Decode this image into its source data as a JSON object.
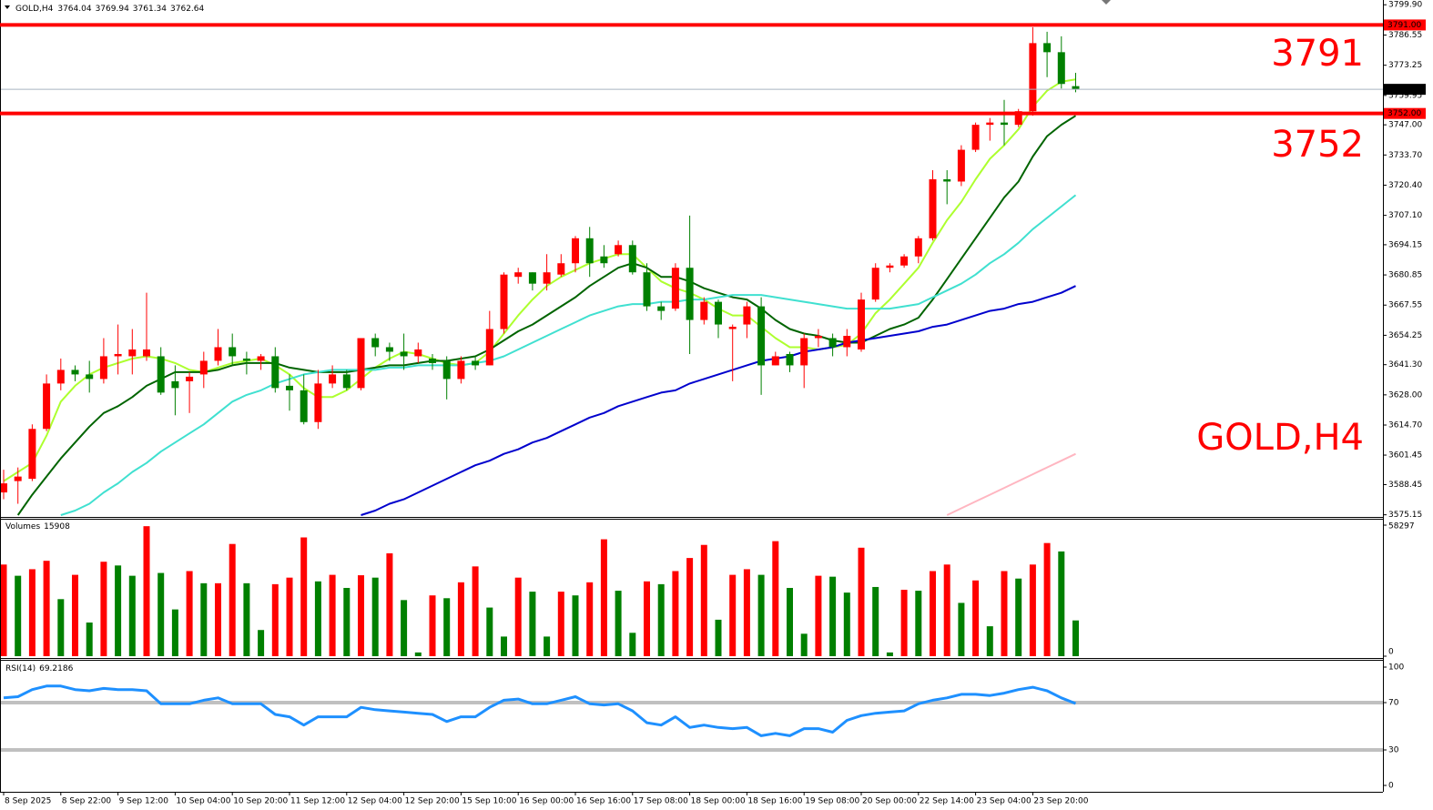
{
  "chart_data": [
    {
      "type": "candlestick",
      "symbol": "GOLD,H4",
      "categories": [
        "8 Sep 2025",
        null,
        null,
        null,
        "8 Sep 22:00",
        null,
        null,
        null,
        "9 Sep 12:00",
        null,
        null,
        null,
        "10 Sep 04:00",
        null,
        null,
        null,
        "10 Sep 20:00",
        null,
        null,
        null,
        "11 Sep 12:00",
        null,
        null,
        null,
        "12 Sep 04:00",
        null,
        null,
        null,
        "12 Sep 20:00",
        null,
        null,
        null,
        "15 Sep 10:00",
        null,
        null,
        null,
        "16 Sep 00:00",
        null,
        null,
        null,
        "16 Sep 16:00",
        null,
        null,
        null,
        "17 Sep 08:00",
        null,
        null,
        null,
        "18 Sep 00:00",
        null,
        null,
        null,
        "18 Sep 16:00",
        null,
        null,
        null,
        "19 Sep 08:00",
        null,
        null,
        null,
        "20 Sep 00:00",
        null,
        null,
        null,
        "22 Sep 14:00",
        null,
        null,
        null,
        "23 Sep 04:00",
        null,
        null,
        null,
        "23 Sep 20:00",
        null,
        null,
        null
      ],
      "open": [
        3585,
        3590,
        3591,
        3613,
        3633,
        3639,
        3637,
        3635,
        3645,
        3645,
        3645,
        3645,
        3634,
        3634,
        3637,
        3643,
        3649,
        3644,
        3643,
        3645,
        3632,
        3630,
        3616,
        3633,
        3637,
        3631,
        3653,
        3649,
        3647,
        3645,
        3644,
        3643,
        3635,
        3643,
        3641,
        3657,
        3680,
        3682,
        3677,
        3681,
        3686,
        3697,
        3689,
        3690,
        3694,
        3682,
        3667,
        3666,
        3684,
        3661,
        3669,
        3657,
        3659,
        3667,
        3641,
        3646,
        3641,
        3653,
        3653,
        3649,
        3648,
        3670,
        3684,
        3685,
        3689,
        3697,
        3723,
        3722,
        3736,
        3747,
        3748,
        3747,
        3753,
        3783,
        3779,
        3764.04
      ],
      "high": [
        3595,
        3596,
        3615,
        3637,
        3644,
        3641,
        3643,
        3653,
        3659,
        3657,
        3673,
        3649,
        3641,
        3638,
        3647,
        3657,
        3655,
        3647,
        3646,
        3649,
        3637,
        3637,
        3639,
        3641,
        3639,
        3653,
        3655,
        3651,
        3655,
        3651,
        3646,
        3645,
        3645,
        3645,
        3665,
        3682,
        3684,
        3682,
        3690,
        3690,
        3698,
        3702,
        3694,
        3696,
        3696,
        3686,
        3669,
        3686,
        3707,
        3671,
        3670,
        3659,
        3669,
        3671,
        3647,
        3647,
        3655,
        3657,
        3655,
        3657,
        3673,
        3686,
        3686,
        3690,
        3698,
        3727,
        3727,
        3738,
        3748,
        3750,
        3758,
        3754,
        3790,
        3788,
        3786,
        3769.94
      ],
      "low": [
        3582,
        3580,
        3590,
        3612,
        3630,
        3634,
        3629,
        3633,
        3637,
        3637,
        3643,
        3628,
        3619,
        3620,
        3631,
        3641,
        3641,
        3637,
        3639,
        3629,
        3621,
        3615,
        3613,
        3631,
        3630,
        3630,
        3645,
        3643,
        3639,
        3642,
        3639,
        3626,
        3633,
        3639,
        3641,
        3655,
        3677,
        3674,
        3674,
        3680,
        3682,
        3680,
        3684,
        3689,
        3681,
        3665,
        3661,
        3665,
        3646,
        3659,
        3653,
        3634,
        3653,
        3628,
        3641,
        3638,
        3631,
        3649,
        3645,
        3645,
        3647,
        3669,
        3682,
        3684,
        3686,
        3696,
        3712,
        3720,
        3735,
        3740,
        3738,
        3746,
        3751,
        3768,
        3763,
        3761.34
      ],
      "close": [
        3589,
        3592,
        3613,
        3633,
        3639,
        3637,
        3635,
        3645,
        3646,
        3648,
        3648,
        3629,
        3631,
        3636,
        3643,
        3649,
        3645,
        3643,
        3645,
        3631,
        3630,
        3616,
        3633,
        3637,
        3631,
        3653,
        3649,
        3647,
        3645,
        3648,
        3642,
        3635,
        3643,
        3641,
        3657,
        3681,
        3682,
        3677,
        3682,
        3686,
        3697,
        3686,
        3686,
        3694,
        3682,
        3667,
        3665,
        3684,
        3661,
        3669,
        3659,
        3658,
        3667,
        3641,
        3645,
        3641,
        3653,
        3654,
        3649,
        3654,
        3670,
        3684,
        3685,
        3689,
        3697,
        3723,
        3722,
        3736,
        3747,
        3748,
        3747,
        3753,
        3783,
        3779,
        3765,
        3762.64
      ],
      "up_color": "#ff0000",
      "down_color": "#008000",
      "ylim": [
        3574.2,
        3802
      ],
      "yticks": [
        {
          "value": 3799.9,
          "label": "3799.90"
        },
        3786.55,
        3773.25,
        3759.95,
        {
          "value": 3747,
          "label": "3747.00"
        },
        {
          "value": 3733.7,
          "label": "3733.70"
        },
        {
          "value": 3720.4,
          "label": "3720.40"
        },
        {
          "value": 3707.1,
          "label": "3707.10"
        },
        3694.15,
        3680.85,
        3667.55,
        3654.25,
        {
          "value": 3641.3,
          "label": "3641.30"
        },
        {
          "value": 3628,
          "label": "3628.00"
        },
        {
          "value": 3614.7,
          "label": "3614.70"
        },
        3601.45,
        3588.45,
        3575.15
      ],
      "levels": [
        {
          "value": 3791,
          "label": "3791.00"
        },
        {
          "value": 3752,
          "label": "3752.00"
        }
      ],
      "level_color": "#ff0000",
      "moving_averages": [
        {
          "color": "#adff2f",
          "values": [
            3590,
            3594,
            3598,
            3610,
            3625,
            3632,
            3637,
            3640,
            3642,
            3644,
            3645,
            3644,
            3642,
            3639,
            3638,
            3640,
            3642,
            3643,
            3644,
            3641,
            3637,
            3631,
            3627,
            3627,
            3630,
            3635,
            3640,
            3644,
            3647,
            3646,
            3644,
            3642,
            3641,
            3642,
            3647,
            3655,
            3663,
            3670,
            3676,
            3680,
            3683,
            3686,
            3688,
            3690,
            3690,
            3684,
            3678,
            3675,
            3673,
            3670,
            3666,
            3663,
            3663,
            3658,
            3653,
            3649,
            3649,
            3648,
            3649,
            3650,
            3655,
            3664,
            3670,
            3677,
            3684,
            3695,
            3705,
            3713,
            3723,
            3732,
            3738,
            3745,
            3755,
            3762,
            3766,
            3767
          ]
        },
        {
          "color": "#006400",
          "values": [
            null,
            3575,
            3584,
            3592,
            3600,
            3607,
            3614,
            3620,
            3623,
            3627,
            3632,
            3635,
            3638,
            3638,
            3638,
            3639,
            3641,
            3642,
            3642,
            3642,
            3640,
            3639,
            3638,
            3638,
            3638,
            3639,
            3640,
            3641,
            3641,
            3642,
            3643,
            3643,
            3644,
            3645,
            3648,
            3652,
            3656,
            3659,
            3663,
            3667,
            3671,
            3676,
            3680,
            3684,
            3686,
            3684,
            3680,
            3680,
            3678,
            3675,
            3673,
            3671,
            3670,
            3666,
            3661,
            3657,
            3655,
            3654,
            3652,
            3651,
            3651,
            3654,
            3657,
            3659,
            3662,
            3670,
            3679,
            3688,
            3697,
            3706,
            3715,
            3722,
            3733,
            3742,
            3747,
            3751
          ]
        },
        {
          "color": "#40e0d0",
          "values": [
            null,
            null,
            null,
            null,
            3575,
            3577,
            3580,
            3585,
            3589,
            3594,
            3598,
            3603,
            3607,
            3611,
            3615,
            3620,
            3625,
            3628,
            3630,
            3633,
            3635,
            3637,
            3638,
            3639,
            3639,
            3639,
            3639,
            3640,
            3640,
            3641,
            3641,
            3641,
            3641,
            3642,
            3643,
            3645,
            3648,
            3651,
            3654,
            3657,
            3660,
            3663,
            3665,
            3667,
            3668,
            3668,
            3669,
            3669,
            3670,
            3670,
            3671,
            3672,
            3672,
            3672,
            3671,
            3670,
            3669,
            3668,
            3667,
            3666,
            3666,
            3666,
            3666,
            3667,
            3668,
            3671,
            3674,
            3677,
            3681,
            3686,
            3690,
            3695,
            3701,
            3706,
            3711,
            3716
          ]
        },
        {
          "color": "#0000cd",
          "values": [
            null,
            null,
            null,
            null,
            null,
            null,
            null,
            null,
            null,
            null,
            null,
            null,
            null,
            null,
            null,
            null,
            null,
            null,
            null,
            null,
            null,
            null,
            null,
            null,
            null,
            3575,
            3577,
            3580,
            3582,
            3585,
            3588,
            3591,
            3594,
            3597,
            3599,
            3602,
            3604,
            3607,
            3609,
            3612,
            3615,
            3618,
            3620,
            3623,
            3625,
            3627,
            3629,
            3630,
            3633,
            3635,
            3637,
            3639,
            3641,
            3643,
            3644,
            3645,
            3647,
            3648,
            3649,
            3651,
            3652,
            3653,
            3654,
            3655,
            3656,
            3658,
            3659,
            3661,
            3663,
            3665,
            3666,
            3668,
            3669,
            3671,
            3673,
            3676
          ]
        },
        {
          "color": "#ffb6c1",
          "values": [
            null,
            null,
            null,
            null,
            null,
            null,
            null,
            null,
            null,
            null,
            null,
            null,
            null,
            null,
            null,
            null,
            null,
            null,
            null,
            null,
            null,
            null,
            null,
            null,
            null,
            null,
            null,
            null,
            null,
            null,
            null,
            null,
            null,
            null,
            null,
            null,
            null,
            null,
            null,
            null,
            null,
            null,
            null,
            null,
            null,
            null,
            null,
            null,
            null,
            null,
            null,
            null,
            null,
            null,
            null,
            null,
            null,
            null,
            null,
            null,
            null,
            null,
            null,
            null,
            null,
            null,
            3575,
            3578,
            3581,
            3584,
            3587,
            3590,
            3593,
            3596,
            3599,
            3602
          ]
        }
      ]
    },
    {
      "type": "volume",
      "title": "Volumes",
      "values": [
        40770,
        35776,
        38688,
        42432,
        25376,
        36192,
        14976,
        42016,
        40352,
        35776,
        57824,
        37024,
        20800,
        37856,
        32448,
        32448,
        49920,
        32448,
        11648,
        32032,
        34944,
        52832,
        33280,
        36192,
        30368,
        36000,
        34944,
        45760,
        24960,
        1664,
        27040,
        25792,
        32864,
        39936,
        21632,
        8736,
        34944,
        28704,
        8736,
        28704,
        27040,
        32864,
        52000,
        29120,
        10400,
        33280,
        32032,
        37856,
        43680,
        49504,
        16224,
        36192,
        38688,
        36192,
        51168,
        30368,
        9984,
        35776,
        35360,
        28288,
        48256,
        30784,
        1664,
        29536,
        29120,
        37856,
        40768,
        23712,
        33696,
        13312,
        37856,
        34528,
        40768,
        50336,
        46592,
        15908
      ],
      "up_color": "#ff0000",
      "down_color": "#008000",
      "ylim": [
        0,
        58297
      ],
      "yticks": [
        58297,
        0
      ]
    },
    {
      "type": "rsi",
      "title": "RSI(14)",
      "values": [
        74,
        75,
        81,
        84,
        84,
        81,
        80,
        82,
        81,
        81,
        80,
        69,
        69,
        69,
        72,
        74,
        69,
        69,
        69,
        60,
        58,
        51,
        58,
        58,
        58,
        66,
        64,
        63,
        62,
        61,
        60,
        54,
        58,
        58,
        66,
        72,
        73,
        69,
        69,
        72,
        75,
        69,
        68,
        69,
        63,
        53,
        51,
        58,
        49,
        51,
        49,
        48,
        49,
        42,
        44,
        42,
        48,
        48,
        45,
        55,
        59,
        61,
        62,
        63,
        69,
        72,
        74,
        77,
        77,
        76,
        78,
        81,
        83,
        80,
        74,
        69.2186
      ],
      "color": "#1e90ff",
      "level_color": "#c0c0c0",
      "ylim": [
        0,
        100
      ],
      "yticks": [
        100,
        70,
        30,
        0
      ]
    }
  ]
}
